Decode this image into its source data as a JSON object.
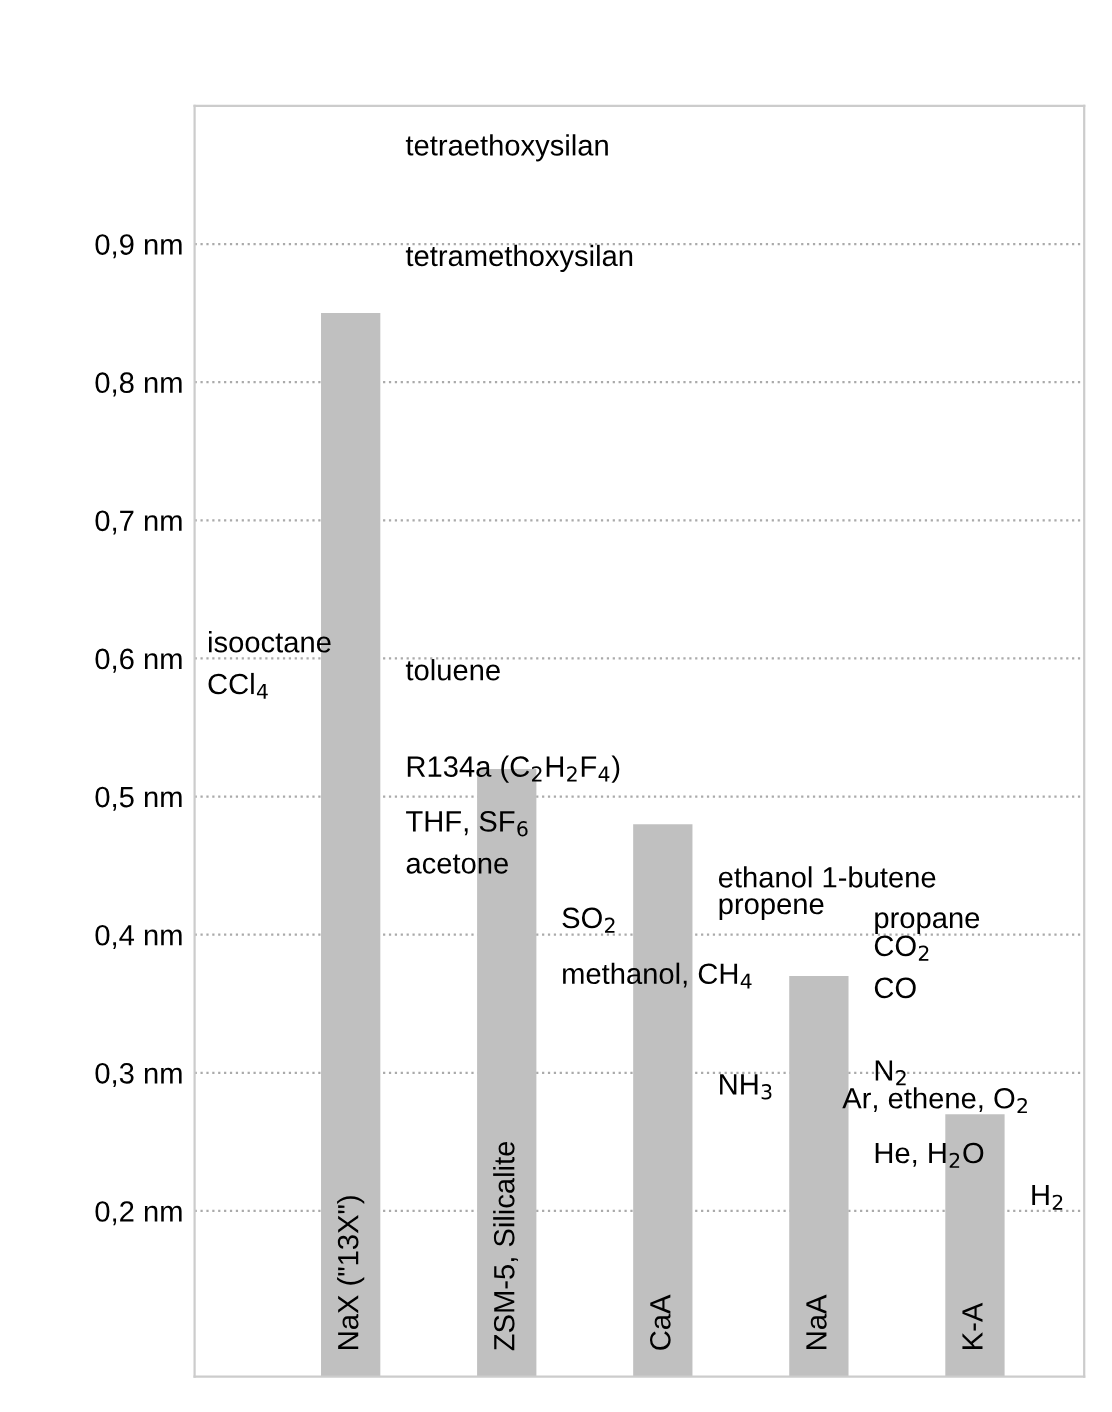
{
  "chart_data": {
    "type": "bar",
    "categories": [
      "NaX (\"13X\")",
      "ZSM-5, Silicalite",
      "CaA",
      "NaA",
      "K-A"
    ],
    "values": [
      0.85,
      0.52,
      0.48,
      0.37,
      0.27
    ],
    "color": "#c0c0c0",
    "ylim": [
      0.08,
      1.0
    ],
    "yticks": [
      {
        "value": 0.2,
        "label": "0,2 nm"
      },
      {
        "value": 0.3,
        "label": "0,3 nm"
      },
      {
        "value": 0.4,
        "label": "0,4 nm"
      },
      {
        "value": 0.5,
        "label": "0,5 nm"
      },
      {
        "value": 0.6,
        "label": "0,6 nm"
      },
      {
        "value": 0.7,
        "label": "0,7 nm"
      },
      {
        "value": 0.8,
        "label": "0,8 nm"
      },
      {
        "value": 0.9,
        "label": "0,9 nm"
      }
    ],
    "grid": "y",
    "annotations": [
      "tetraethoxysilan",
      "tetramethoxysilan",
      "isooctane",
      "CCl$_{4}$",
      "toluene",
      "R134a (C$_{2}$H$_{2}$F$_{4}$)",
      "THF, SF$_{6}$",
      "acetone",
      "SO$_{2}$",
      "methanol, CH$_{4}$",
      "ethanol 1-butene",
      "propene",
      "NH$_{3}$",
      "propane",
      "CO$_{2}$",
      "CO",
      "N$_{2}$",
      "Ar, ethene, O$_{2}$",
      "He, H$_{2}$O",
      "H$_{2}$"
    ]
  }
}
